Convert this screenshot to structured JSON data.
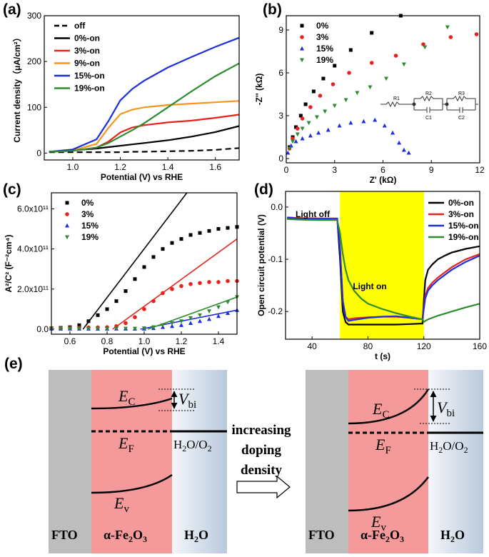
{
  "chart_data": [
    {
      "type": "line",
      "panel_label": "(a)",
      "xlabel": "Potential (V) vs RHE",
      "ylabel": "Current density（μA/cm²）",
      "xlim": [
        0.88,
        1.7
      ],
      "ylim": [
        -15,
        300
      ],
      "xticks": [
        {
          "value": 1.0,
          "label": "1.0"
        },
        1.2,
        1.4,
        1.6
      ],
      "yticks": [
        0,
        100,
        200,
        300
      ],
      "legend": "upper left",
      "x": [
        0.9,
        1.0,
        1.1,
        1.15,
        1.2,
        1.25,
        1.3,
        1.4,
        1.5,
        1.6,
        1.7
      ],
      "series": [
        {
          "name": "off",
          "color": "#000000",
          "dash": true,
          "values": [
            2,
            2,
            2,
            2,
            2,
            3,
            3,
            4,
            5,
            7,
            11
          ]
        },
        {
          "name": "0%-on",
          "color": "#000000",
          "values": [
            3,
            6,
            10,
            13,
            16,
            19,
            22,
            28,
            36,
            46,
            59
          ]
        },
        {
          "name": "3%-on",
          "color": "#e8221b",
          "values": [
            3,
            5,
            12,
            25,
            45,
            56,
            61,
            67,
            71,
            77,
            84
          ]
        },
        {
          "name": "9%-on",
          "color": "#f7941d",
          "values": [
            3,
            6,
            20,
            55,
            85,
            95,
            100,
            105,
            108,
            111,
            114
          ]
        },
        {
          "name": "15%-on",
          "color": "#1c2ee0",
          "values": [
            3,
            8,
            30,
            70,
            115,
            140,
            158,
            187,
            210,
            232,
            252
          ]
        },
        {
          "name": "19%-on",
          "color": "#2e8b2e",
          "values": [
            3,
            5,
            12,
            22,
            36,
            50,
            65,
            100,
            135,
            168,
            196
          ]
        }
      ]
    },
    {
      "type": "scatter",
      "panel_label": "(b)",
      "xlabel": "Z' (kΩ)",
      "ylabel": "-Z'' (kΩ)",
      "xlim": [
        0,
        12
      ],
      "ylim": [
        -0.3,
        10
      ],
      "xticks": [
        0,
        3,
        6,
        9,
        12
      ],
      "yticks": [
        0,
        3,
        6,
        9
      ],
      "legend": "upper left",
      "inset_labels": [
        "R1",
        "R2",
        "C1",
        "R3",
        "C2"
      ],
      "series": [
        {
          "name": "0%",
          "color": "#000000",
          "marker": "square",
          "x": [
            0.2,
            0.4,
            0.6,
            0.9,
            1.2,
            1.7,
            2.3,
            3.0,
            4.0,
            5.3,
            7.1
          ],
          "values": [
            0.8,
            1.5,
            2.2,
            3.0,
            3.8,
            4.7,
            5.6,
            6.5,
            7.6,
            8.8,
            10.0
          ]
        },
        {
          "name": "3%",
          "color": "#e8221b",
          "marker": "circle",
          "x": [
            0.2,
            0.4,
            0.7,
            1.0,
            1.5,
            2.1,
            2.9,
            3.9,
            5.3,
            6.8,
            8.5,
            10.2,
            11.8
          ],
          "values": [
            0.7,
            1.4,
            2.1,
            2.8,
            3.6,
            4.4,
            5.2,
            6.0,
            6.7,
            7.2,
            8.0,
            8.5,
            8.7
          ]
        },
        {
          "name": "15%",
          "color": "#1c2ee0",
          "marker": "triangle",
          "x": [
            0.1,
            0.3,
            0.6,
            1.0,
            1.5,
            2.0,
            2.6,
            3.3,
            4.0,
            4.8,
            5.5,
            6.1,
            6.6,
            7.0,
            7.3,
            7.6
          ],
          "values": [
            0.4,
            0.9,
            1.2,
            1.4,
            1.6,
            1.8,
            2.0,
            2.3,
            2.5,
            2.6,
            2.7,
            2.3,
            1.8,
            1.1,
            0.6,
            0.4
          ]
        },
        {
          "name": "19%",
          "color": "#2e8b2e",
          "marker": "triangle-down",
          "x": [
            0.2,
            0.4,
            0.7,
            1.0,
            1.4,
            1.9,
            2.4,
            3.0,
            3.7,
            4.4,
            5.2,
            6.2,
            7.3,
            8.6,
            10.0
          ],
          "values": [
            0.7,
            1.2,
            1.7,
            2.1,
            2.5,
            2.9,
            3.3,
            3.7,
            4.1,
            4.6,
            5.0,
            5.6,
            6.6,
            7.8,
            9.2
          ]
        }
      ]
    },
    {
      "type": "scatter",
      "panel_label": "(c)",
      "xlabel": "Potential (V) vs RHE",
      "ylabel": "A²/C² (F⁻²cm⁴)",
      "xlim": [
        0.5,
        1.5
      ],
      "ylim": [
        -25000000000.0,
        680000000000.0
      ],
      "xticks": [
        0.6,
        0.8,
        {
          "value": 1.0,
          "label": "1.0"
        },
        1.2,
        1.4
      ],
      "yticks": [
        {
          "value": 0,
          "label": "0.0"
        },
        {
          "value": 200000000000.0,
          "label": "2.0x10¹¹"
        },
        {
          "value": 400000000000.0,
          "label": "4.0x10¹¹"
        },
        {
          "value": 600000000000.0,
          "label": "6.0x10¹¹"
        }
      ],
      "legend": "upper left",
      "x": [
        0.5,
        0.55,
        0.6,
        0.65,
        0.7,
        0.75,
        0.8,
        0.85,
        0.9,
        0.95,
        1.0,
        1.05,
        1.1,
        1.15,
        1.2,
        1.25,
        1.3,
        1.35,
        1.4,
        1.45,
        1.5
      ],
      "series": [
        {
          "name": "0%",
          "color": "#000000",
          "marker": "square",
          "values": [
            5000000000.0,
            7000000000.0,
            10000000000.0,
            20000000000.0,
            40000000000.0,
            70000000000.0,
            100000000000.0,
            140000000000.0,
            190000000000.0,
            250000000000.0,
            310000000000.0,
            360000000000.0,
            400000000000.0,
            430000000000.0,
            450000000000.0,
            470000000000.0,
            480000000000.0,
            490000000000.0,
            500000000000.0,
            505000000000.0,
            510000000000.0
          ]
        },
        {
          "name": "3%",
          "color": "#e8221b",
          "marker": "circle",
          "values": [
            5000000000.0,
            5000000000.0,
            6000000000.0,
            7000000000.0,
            8000000000.0,
            9000000000.0,
            10000000000.0,
            15000000000.0,
            30000000000.0,
            60000000000.0,
            100000000000.0,
            140000000000.0,
            180000000000.0,
            200000000000.0,
            215000000000.0,
            225000000000.0,
            230000000000.0,
            235000000000.0,
            235000000000.0,
            240000000000.0,
            240000000000.0
          ]
        },
        {
          "name": "15%",
          "color": "#1c2ee0",
          "marker": "triangle",
          "values": [
            2000000000.0,
            2000000000.0,
            2000000000.0,
            2000000000.0,
            2000000000.0,
            2000000000.0,
            2000000000.0,
            2000000000.0,
            2000000000.0,
            2000000000.0,
            2000000000.0,
            5000000000.0,
            10000000000.0,
            15000000000.0,
            20000000000.0,
            30000000000.0,
            40000000000.0,
            50000000000.0,
            65000000000.0,
            80000000000.0,
            95000000000.0
          ]
        },
        {
          "name": "19%",
          "color": "#2e8b2e",
          "marker": "triangle-down",
          "values": [
            3000000000.0,
            3000000000.0,
            3000000000.0,
            3000000000.0,
            3000000000.0,
            3000000000.0,
            3000000000.0,
            3000000000.0,
            3000000000.0,
            3000000000.0,
            5000000000.0,
            10000000000.0,
            20000000000.0,
            30000000000.0,
            40000000000.0,
            55000000000.0,
            70000000000.0,
            90000000000.0,
            110000000000.0,
            135000000000.0,
            160000000000.0
          ]
        }
      ],
      "fits": [
        {
          "color": "#000000",
          "x": [
            0.67,
            1.23
          ],
          "values": [
            0,
            680000000000.0
          ]
        },
        {
          "color": "#e8221b",
          "x": [
            0.83,
            1.5
          ],
          "values": [
            0,
            450000000000.0
          ]
        },
        {
          "color": "#1c2ee0",
          "x": [
            0.98,
            1.5
          ],
          "values": [
            0,
            95000000000.0
          ]
        },
        {
          "color": "#2e8b2e",
          "x": [
            1.02,
            1.5
          ],
          "values": [
            0,
            160000000000.0
          ]
        }
      ]
    },
    {
      "type": "line",
      "panel_label": "(d)",
      "xlabel": "t (s)",
      "ylabel": "Open circuit potential (V)",
      "xlim": [
        21,
        160
      ],
      "ylim": [
        -0.253,
        0.03
      ],
      "xticks": [
        40,
        80,
        120,
        160
      ],
      "yticks": [
        {
          "value": 0,
          "label": "0.0"
        },
        -0.1,
        -0.2
      ],
      "legend": "upper right",
      "highlight": {
        "x": [
          60,
          120
        ],
        "color": "#ffff00"
      },
      "annotations": [
        "Light off",
        "Light on"
      ],
      "x": [
        22,
        30,
        45,
        58,
        60,
        62,
        64,
        66,
        70,
        75,
        80,
        90,
        100,
        110,
        119,
        120,
        121,
        123,
        126,
        130,
        135,
        140,
        150,
        160
      ],
      "series": [
        {
          "name": "0%-on",
          "color": "#000000",
          "values": [
            -0.02,
            -0.021,
            -0.022,
            -0.022,
            -0.1,
            -0.2,
            -0.22,
            -0.225,
            -0.225,
            -0.225,
            -0.225,
            -0.225,
            -0.225,
            -0.224,
            -0.223,
            -0.18,
            -0.14,
            -0.12,
            -0.11,
            -0.1,
            -0.093,
            -0.087,
            -0.08,
            -0.075
          ]
        },
        {
          "name": "3%-on",
          "color": "#e8221b",
          "values": [
            -0.02,
            -0.021,
            -0.022,
            -0.022,
            -0.08,
            -0.18,
            -0.21,
            -0.215,
            -0.213,
            -0.212,
            -0.211,
            -0.21,
            -0.21,
            -0.212,
            -0.215,
            -0.19,
            -0.17,
            -0.155,
            -0.145,
            -0.135,
            -0.125,
            -0.115,
            -0.1,
            -0.09
          ]
        },
        {
          "name": "15%-on",
          "color": "#1c2ee0",
          "values": [
            -0.02,
            -0.022,
            -0.023,
            -0.023,
            -0.08,
            -0.18,
            -0.21,
            -0.218,
            -0.216,
            -0.214,
            -0.212,
            -0.21,
            -0.209,
            -0.212,
            -0.215,
            -0.195,
            -0.175,
            -0.16,
            -0.15,
            -0.14,
            -0.13,
            -0.12,
            -0.105,
            -0.093
          ]
        },
        {
          "name": "19%-on",
          "color": "#2e8b2e",
          "values": [
            -0.023,
            -0.024,
            -0.025,
            -0.025,
            -0.05,
            -0.09,
            -0.12,
            -0.14,
            -0.16,
            -0.175,
            -0.185,
            -0.195,
            -0.203,
            -0.21,
            -0.215,
            -0.22,
            -0.218,
            -0.215,
            -0.212,
            -0.208,
            -0.204,
            -0.2,
            -0.192,
            -0.185
          ]
        }
      ]
    }
  ],
  "diagram": {
    "panel_label": "(e)",
    "arrow_text": [
      "increasing",
      "doping",
      "density"
    ],
    "left": {
      "fto": "FTO",
      "fe": [
        "α-Fe",
        "2",
        "O",
        "3"
      ],
      "h2o": [
        "H",
        "2",
        "O"
      ],
      "ec": [
        "E",
        "C"
      ],
      "vbi": [
        "V",
        "bi"
      ],
      "ef": [
        "E",
        "F"
      ],
      "redox": [
        "H",
        "2",
        "O/O",
        "2"
      ],
      "ev": [
        "E",
        "v"
      ]
    },
    "right": {
      "fto": "FTO",
      "fe": [
        "α-Fe",
        "2",
        "O",
        "3"
      ],
      "h2o": [
        "H",
        "2",
        "O"
      ],
      "ec": [
        "E",
        "C"
      ],
      "vbi": [
        "V",
        "bi"
      ],
      "ef": [
        "E",
        "F"
      ],
      "redox": [
        "H",
        "2",
        "O/O",
        "2"
      ],
      "ev": [
        "E",
        "v"
      ]
    }
  }
}
